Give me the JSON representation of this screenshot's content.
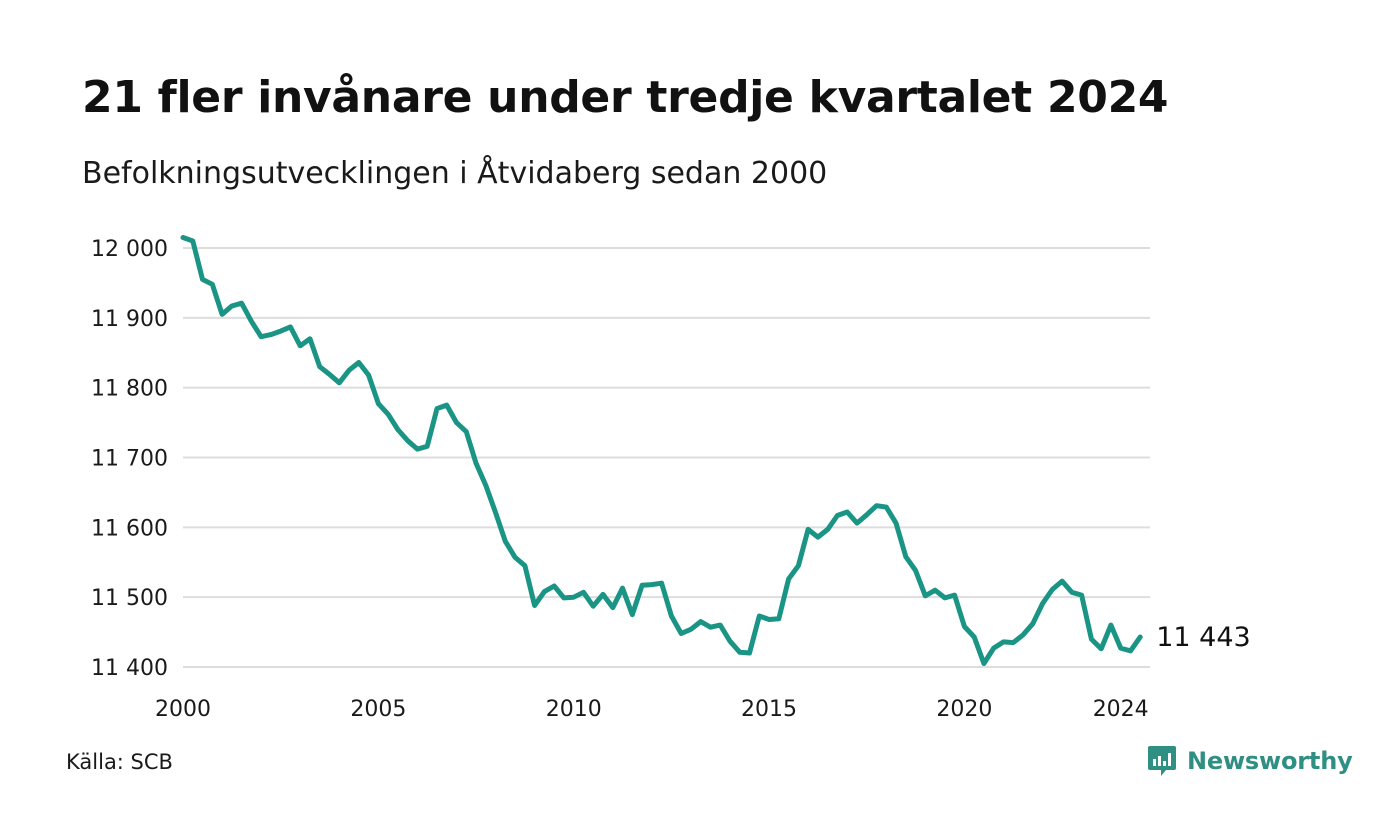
{
  "title": "21 fler invånare under tredje kvartalet 2024",
  "subtitle": "Befolkningsutvecklingen i Åtvidaberg sedan 2000",
  "source": "Källa: SCB",
  "brand": {
    "name": "Newsworthy",
    "icon": "newsworthy-logo-icon",
    "color": "#2f8f83"
  },
  "colors": {
    "line": "#1a9484",
    "grid": "#dddddd",
    "text": "#111111"
  },
  "chart_data": {
    "type": "line",
    "title": "21 fler invånare under tredje kvartalet 2024",
    "subtitle": "Befolkningsutvecklingen i Åtvidaberg sedan 2000",
    "xlabel": "",
    "ylabel": "",
    "xlim": [
      2000,
      2024.75
    ],
    "ylim": [
      11400,
      12000
    ],
    "grid": "horizontal",
    "yticks": [
      12000,
      11900,
      11800,
      11700,
      11600,
      11500,
      11400
    ],
    "ytick_labels": [
      "12 000",
      "11 900",
      "11 800",
      "11 700",
      "11 600",
      "11 500",
      "11 400"
    ],
    "xticks": [
      2000,
      2005,
      2010,
      2015,
      2020,
      2024
    ],
    "xtick_labels": [
      "2000",
      "2005",
      "2010",
      "2015",
      "2020",
      "2024"
    ],
    "end_label": "11 443",
    "series": [
      {
        "x_start": 2000.0,
        "x_step": 0.25,
        "values": [
          12015,
          12010,
          11955,
          11948,
          11905,
          11917,
          11921,
          11895,
          11873,
          11876,
          11881,
          11887,
          11860,
          11870,
          11830,
          11819,
          11807,
          11825,
          11836,
          11818,
          11777,
          11762,
          11740,
          11724,
          11712,
          11716,
          11770,
          11775,
          11750,
          11737,
          11692,
          11660,
          11621,
          11580,
          11557,
          11545,
          11488,
          11508,
          11516,
          11499,
          11500,
          11507,
          11487,
          11504,
          11485,
          11513,
          11475,
          11517,
          11518,
          11520,
          11473,
          11448,
          11454,
          11465,
          11457,
          11460,
          11437,
          11421,
          11420,
          11473,
          11468,
          11469,
          11526,
          11545,
          11597,
          11586,
          11597,
          11617,
          11622,
          11606,
          11618,
          11631,
          11629,
          11606,
          11558,
          11538,
          11502,
          11510,
          11499,
          11503,
          11458,
          11443,
          11405,
          11427,
          11436,
          11435,
          11446,
          11462,
          11491,
          11511,
          11523,
          11507,
          11503,
          11440,
          11426,
          11460,
          11427,
          11423,
          11443
        ]
      }
    ]
  }
}
